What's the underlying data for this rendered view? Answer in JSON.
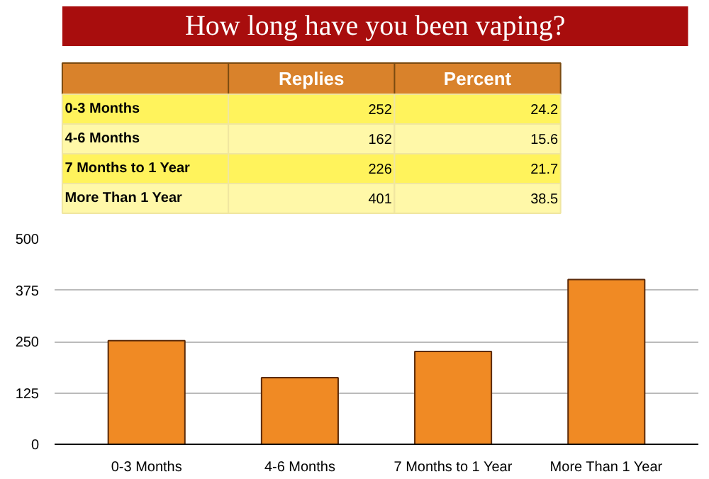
{
  "chart_data": [
    {
      "type": "other",
      "title": "How long have you been vaping?",
      "categories": [
        "0-3 Months",
        "4-6 Months",
        "7 Months to 1 Year",
        "More Than 1 Year"
      ],
      "series": [
        {
          "name": "Replies",
          "values": [
            252,
            162,
            226,
            401
          ],
          "colors": [
            "#fff35c",
            "#fff8a8",
            "#fff35c",
            "#fff8a8"
          ]
        },
        {
          "name": "Percent",
          "values": [
            24.2,
            15.6,
            21.7,
            38.5
          ],
          "colors": [
            "#fff35c",
            "#fff8a8",
            "#fff35c",
            "#fff8a8"
          ]
        }
      ],
      "data_labels": true
    },
    {
      "type": "bar",
      "categories": [
        "0-3 Months",
        "4-6 Months",
        "7 Months to 1 Year",
        "More Than 1 Year"
      ],
      "values": [
        252,
        162,
        226,
        401
      ],
      "color": "#f08a24",
      "ylim": [
        0,
        500
      ],
      "yticks": [
        0,
        125,
        250,
        375,
        500
      ],
      "grid": "y"
    }
  ]
}
